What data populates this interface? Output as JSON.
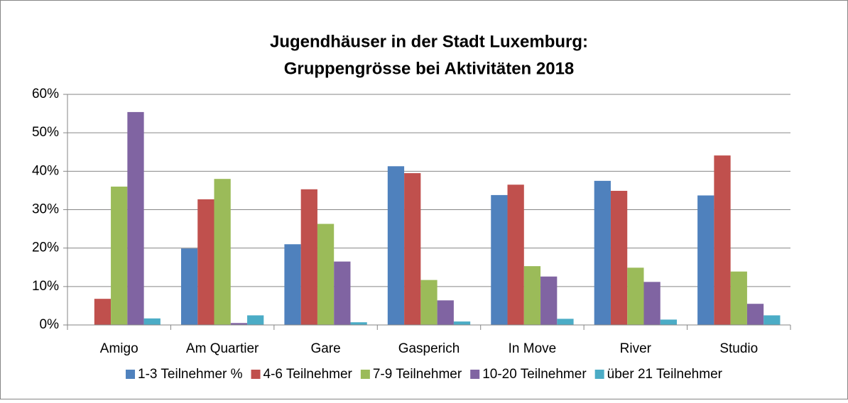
{
  "chart_data": {
    "type": "bar",
    "title": [
      "Jugendhäuser in der Stadt Luxemburg:",
      "Gruppengrösse bei Aktivitäten 2018"
    ],
    "categories": [
      "Amigo",
      "Am Quartier",
      "Gare",
      "Gasperich",
      "In Move",
      "River",
      "Studio"
    ],
    "series": [
      {
        "name": "1-3 Teilnehmer %",
        "color": "#4f81bd",
        "values": [
          0,
          19.9,
          21,
          41.3,
          33.8,
          37.5,
          33.7
        ]
      },
      {
        "name": "4-6 Teilnehmer",
        "color": "#c0504d",
        "values": [
          6.8,
          32.7,
          35.3,
          39.5,
          36.5,
          34.9,
          44.1
        ]
      },
      {
        "name": "7-9 Teilnehmer",
        "color": "#9bbb59",
        "values": [
          36,
          38,
          26.3,
          11.7,
          15.3,
          14.9,
          13.9
        ]
      },
      {
        "name": "10-20 Teilnehmer",
        "color": "#8064a2",
        "values": [
          55.4,
          0.5,
          16.5,
          6.4,
          12.6,
          11.2,
          5.5
        ]
      },
      {
        "name": "über 21 Teilnehmer",
        "color": "#4bacc6",
        "values": [
          1.7,
          2.5,
          0.7,
          0.9,
          1.6,
          1.4,
          2.5
        ]
      }
    ],
    "ylim": [
      0,
      60
    ],
    "yticks": [
      {
        "value": 0,
        "label": "0%"
      },
      {
        "value": 10,
        "label": "10%"
      },
      {
        "value": 20,
        "label": "20%"
      },
      {
        "value": 30,
        "label": "30%"
      },
      {
        "value": 40,
        "label": "40%"
      },
      {
        "value": 50,
        "label": "50%"
      },
      {
        "value": 60,
        "label": "60%"
      }
    ],
    "grid": true,
    "legend": "bottom"
  }
}
